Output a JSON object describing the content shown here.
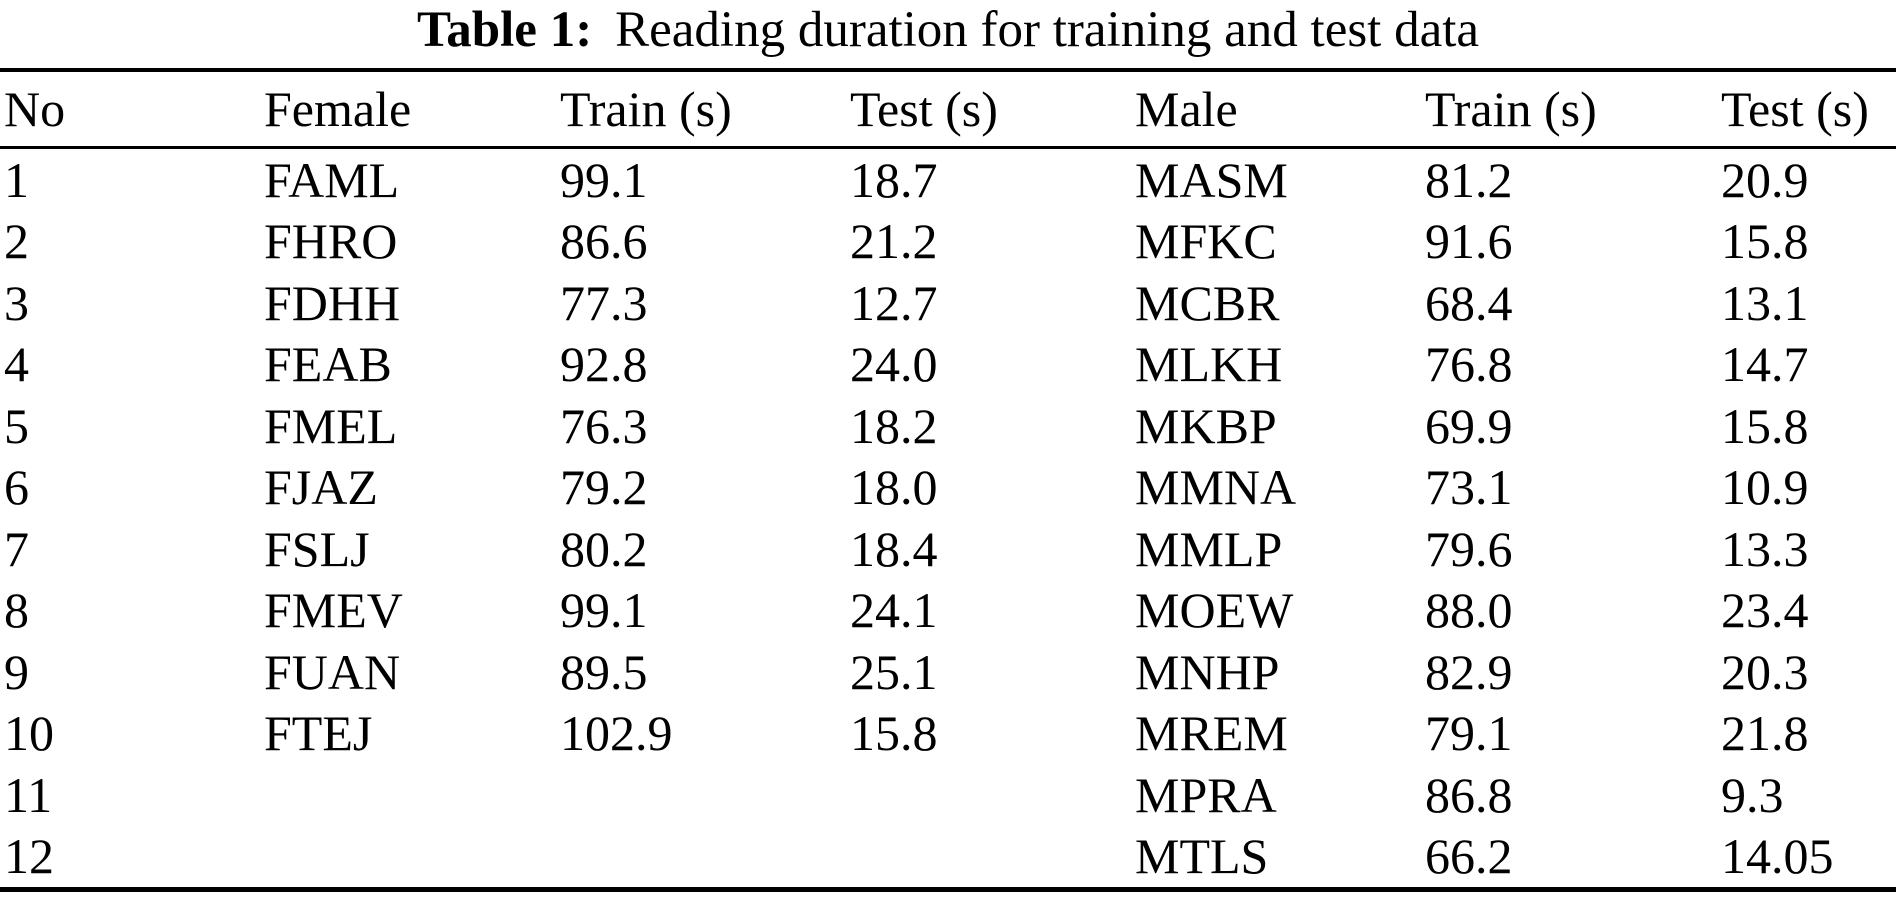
{
  "title": {
    "label": "Table 1:",
    "caption": "Reading duration for training and test data"
  },
  "table": {
    "columns": [
      "No",
      "Female",
      "Train (s)",
      "Test (s)",
      "Male",
      "Train (s)",
      "Test (s)"
    ],
    "rows": [
      [
        "1",
        "FAML",
        "99.1",
        "18.7",
        "MASM",
        "81.2",
        "20.9"
      ],
      [
        "2",
        "FHRO",
        "86.6",
        "21.2",
        "MFKC",
        "91.6",
        "15.8"
      ],
      [
        "3",
        "FDHH",
        "77.3",
        "12.7",
        "MCBR",
        "68.4",
        "13.1"
      ],
      [
        "4",
        "FEAB",
        "92.8",
        "24.0",
        "MLKH",
        "76.8",
        "14.7"
      ],
      [
        "5",
        "FMEL",
        "76.3",
        "18.2",
        "MKBP",
        "69.9",
        "15.8"
      ],
      [
        "6",
        "FJAZ",
        "79.2",
        "18.0",
        "MMNA",
        "73.1",
        "10.9"
      ],
      [
        "7",
        "FSLJ",
        "80.2",
        "18.4",
        "MMLP",
        "79.6",
        "13.3"
      ],
      [
        "8",
        "FMEV",
        "99.1",
        "24.1",
        "MOEW",
        "88.0",
        "23.4"
      ],
      [
        "9",
        "FUAN",
        "89.5",
        "25.1",
        "MNHP",
        "82.9",
        "20.3"
      ],
      [
        "10",
        "FTEJ",
        "102.9",
        "15.8",
        "MREM",
        "79.1",
        "21.8"
      ],
      [
        "11",
        "",
        "",
        "",
        "MPRA",
        "86.8",
        "9.3"
      ],
      [
        "12",
        "",
        "",
        "",
        "MTLS",
        "66.2",
        "14.05"
      ]
    ]
  },
  "colors": {
    "text": "#000000",
    "background": "#ffffff",
    "rule": "#000000"
  }
}
